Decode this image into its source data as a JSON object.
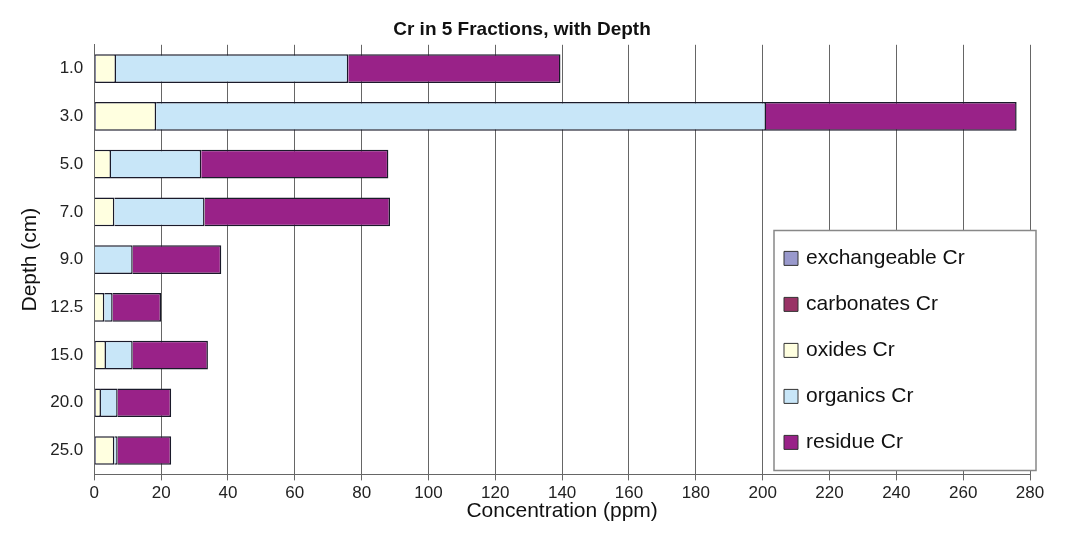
{
  "chart_data": {
    "type": "bar",
    "orientation": "horizontal",
    "stacked": true,
    "title": "Cr in 5 Fractions, with Depth",
    "xlabel": "Concentration (ppm)",
    "ylabel": "Depth (cm)",
    "categories": [
      "1.0",
      "3.0",
      "5.0",
      "7.0",
      "9.0",
      "12.5",
      "15.0",
      "20.0",
      "25.0"
    ],
    "series": [
      {
        "name": "exchangeable Cr",
        "color": "#9999cc",
        "values": [
          0.5,
          0.5,
          0,
          0,
          0,
          0,
          0.5,
          0.5,
          0.5
        ]
      },
      {
        "name": "carbonates Cr",
        "color": "#993366",
        "values": [
          0,
          0,
          0,
          0,
          0,
          0,
          0,
          0,
          0
        ]
      },
      {
        "name": "oxides Cr",
        "color": "#ffffe0",
        "values": [
          6,
          18,
          5,
          6,
          0,
          3,
          3,
          1.5,
          5.5
        ]
      },
      {
        "name": "organics Cr",
        "color": "#c8e6f8",
        "values": [
          69.5,
          182.5,
          27,
          27,
          11.5,
          2.5,
          8,
          5,
          1
        ]
      },
      {
        "name": "residue Cr",
        "color": "#992288",
        "values": [
          63.5,
          75,
          56,
          55.5,
          26.5,
          14.5,
          22.5,
          16,
          16
        ]
      }
    ],
    "xlim": [
      0,
      280
    ],
    "xticks": [
      0,
      20,
      40,
      60,
      80,
      100,
      120,
      140,
      160,
      180,
      200,
      220,
      240,
      260,
      280
    ],
    "grid": "x",
    "legend": "bottom right"
  }
}
